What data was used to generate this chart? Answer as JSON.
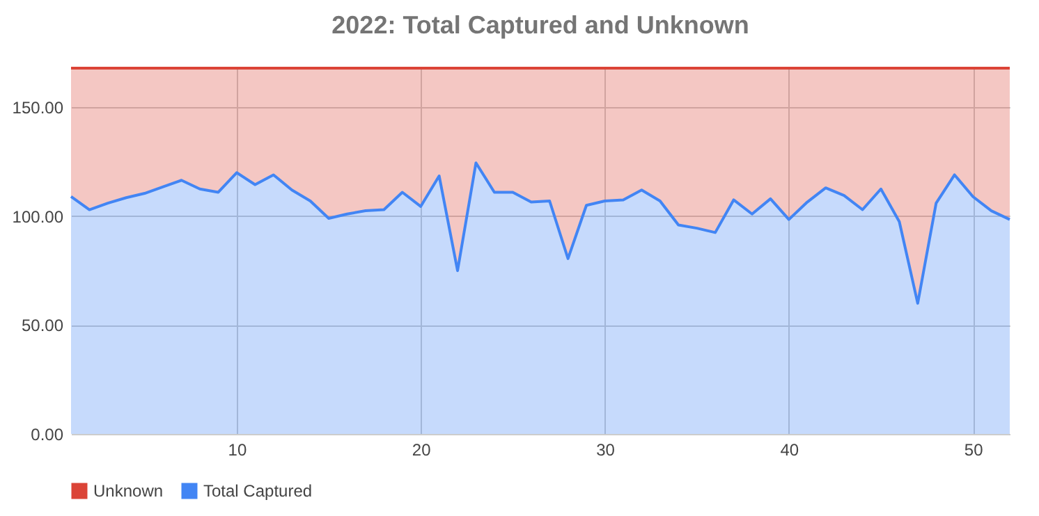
{
  "chart_data": {
    "type": "area",
    "title": "2022: Total Captured and Unknown",
    "stacked": true,
    "x": [
      1,
      2,
      3,
      4,
      5,
      6,
      7,
      8,
      9,
      10,
      11,
      12,
      13,
      14,
      15,
      16,
      17,
      18,
      19,
      20,
      21,
      22,
      23,
      24,
      25,
      26,
      27,
      28,
      29,
      30,
      31,
      32,
      33,
      34,
      35,
      36,
      37,
      38,
      39,
      40,
      41,
      42,
      43,
      44,
      45,
      46,
      47,
      48,
      49,
      50,
      51,
      52
    ],
    "series": [
      {
        "name": "Total Captured",
        "color": "#4285f4",
        "values": [
          109,
          103,
          106,
          108.5,
          110.5,
          113.5,
          116.5,
          112.5,
          111,
          120,
          114.5,
          119,
          112,
          107,
          99,
          101,
          102.5,
          103,
          111,
          104.5,
          118.5,
          75,
          124.5,
          111,
          111,
          106.5,
          107,
          80.5,
          105,
          107,
          107.5,
          112,
          107,
          96,
          94.5,
          92.5,
          107.5,
          101,
          108,
          98.5,
          106.5,
          113,
          109.5,
          103,
          112.5,
          97.5,
          60,
          106,
          119,
          109,
          102.5,
          98.5
        ]
      },
      {
        "name": "Unknown",
        "color": "#db4437",
        "values": [
          59,
          65,
          62,
          59.5,
          57.5,
          54.5,
          51.5,
          55.5,
          57,
          48,
          53.5,
          49,
          56,
          61,
          69,
          67,
          65.5,
          65,
          57,
          63.5,
          49.5,
          93,
          43.5,
          57,
          57,
          61.5,
          61,
          87.5,
          63,
          61,
          60.5,
          56,
          61,
          72,
          73.5,
          75.5,
          60.5,
          67,
          60,
          69.5,
          61.5,
          55,
          58.5,
          65,
          55.5,
          70.5,
          108,
          62,
          49,
          59,
          65.5,
          69.5
        ]
      }
    ],
    "xlim": [
      1,
      52
    ],
    "xticks": [
      10,
      20,
      30,
      40,
      50
    ],
    "ylim": [
      0,
      168
    ],
    "yticks": [
      {
        "value": 0,
        "label": "0.00"
      },
      {
        "value": 50,
        "label": "50.00"
      },
      {
        "value": 100,
        "label": "100.00"
      },
      {
        "value": 150,
        "label": "150.00"
      }
    ],
    "grid": true,
    "legend": "bottom"
  }
}
